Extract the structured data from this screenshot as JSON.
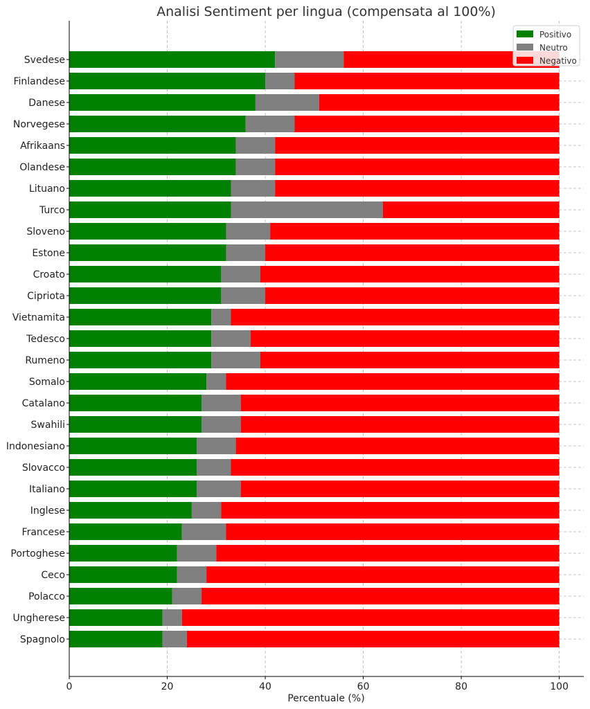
{
  "chart_data": {
    "type": "bar",
    "orientation": "horizontal",
    "stacked": true,
    "title": "Analisi Sentiment per lingua (compensata al 100%)",
    "xlabel": "Percentuale (%)",
    "ylabel": "",
    "xlim": [
      0,
      105
    ],
    "xticks": [
      0,
      20,
      40,
      60,
      80,
      100
    ],
    "grid": true,
    "legend_position": "top-right",
    "categories": [
      "Svedese",
      "Finlandese",
      "Danese",
      "Norvegese",
      "Afrikaans",
      "Olandese",
      "Lituano",
      "Turco",
      "Sloveno",
      "Estone",
      "Croato",
      "Cipriota",
      "Vietnamita",
      "Tedesco",
      "Rumeno",
      "Somalo",
      "Catalano",
      "Swahili",
      "Indonesiano",
      "Slovacco",
      "Italiano",
      "Inglese",
      "Francese",
      "Portoghese",
      "Ceco",
      "Polacco",
      "Ungherese",
      "Spagnolo"
    ],
    "series": [
      {
        "name": "Positivo",
        "color": "#008000",
        "values": [
          42,
          40,
          38,
          36,
          34,
          34,
          33,
          33,
          32,
          32,
          31,
          31,
          29,
          29,
          29,
          28,
          27,
          27,
          26,
          26,
          26,
          25,
          23,
          22,
          22,
          21,
          19,
          19
        ]
      },
      {
        "name": "Neutro",
        "color": "#808080",
        "values": [
          14,
          6,
          13,
          10,
          8,
          8,
          9,
          31,
          9,
          8,
          8,
          9,
          4,
          8,
          10,
          4,
          8,
          8,
          8,
          7,
          9,
          6,
          9,
          8,
          6,
          6,
          4,
          5
        ]
      },
      {
        "name": "Negativo",
        "color": "#ff0000",
        "values": [
          44,
          54,
          49,
          54,
          58,
          58,
          58,
          36,
          59,
          60,
          61,
          60,
          67,
          63,
          61,
          68,
          65,
          65,
          66,
          67,
          65,
          69,
          68,
          70,
          72,
          73,
          77,
          76
        ]
      }
    ]
  }
}
